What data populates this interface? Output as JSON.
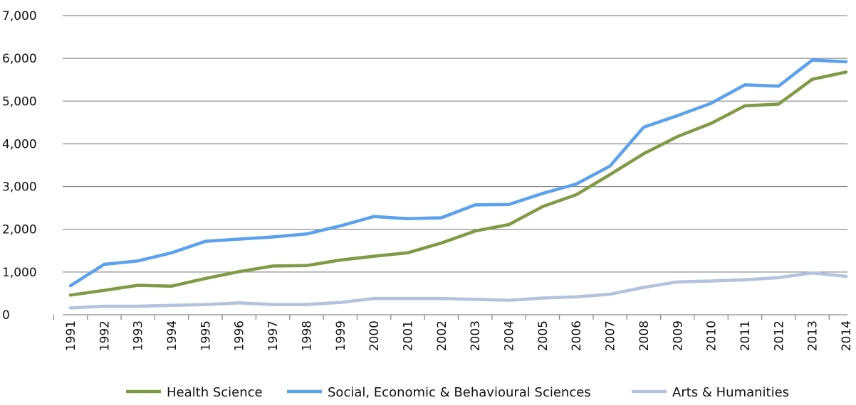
{
  "chart_data": {
    "type": "line",
    "x": [
      "1991",
      "1992",
      "1993",
      "1994",
      "1995",
      "1996",
      "1997",
      "1998",
      "1999",
      "2000",
      "2001",
      "2002",
      "2003",
      "2004",
      "2005",
      "2006",
      "2007",
      "2008",
      "2009",
      "2010",
      "2011",
      "2012",
      "2013",
      "2014"
    ],
    "ylim": [
      0,
      7000
    ],
    "yticks": [
      "0",
      "1,000",
      "2,000",
      "3,000",
      "4,000",
      "5,000",
      "6,000",
      "7,000"
    ],
    "grid": true,
    "legend_position": "bottom",
    "series": [
      {
        "name": "Health Science",
        "color": "#7f9b44",
        "values": [
          460,
          570,
          690,
          670,
          850,
          1010,
          1140,
          1150,
          1280,
          1370,
          1450,
          1680,
          1960,
          2110,
          2530,
          2810,
          3280,
          3770,
          4170,
          4480,
          4890,
          4930,
          5510,
          5680
        ]
      },
      {
        "name": "Social, Economic & Behavioural Sciences",
        "color": "#5aa1ef",
        "values": [
          680,
          1180,
          1260,
          1450,
          1720,
          1770,
          1820,
          1890,
          2080,
          2300,
          2250,
          2270,
          2570,
          2580,
          2840,
          3060,
          3480,
          4390,
          4660,
          4950,
          5380,
          5350,
          5960,
          5920
        ]
      },
      {
        "name": "Arts & Humanities",
        "color": "#b4c3dd",
        "values": [
          160,
          200,
          200,
          220,
          240,
          280,
          240,
          240,
          290,
          380,
          380,
          380,
          360,
          340,
          390,
          420,
          480,
          640,
          770,
          790,
          820,
          870,
          980,
          900
        ]
      }
    ]
  }
}
